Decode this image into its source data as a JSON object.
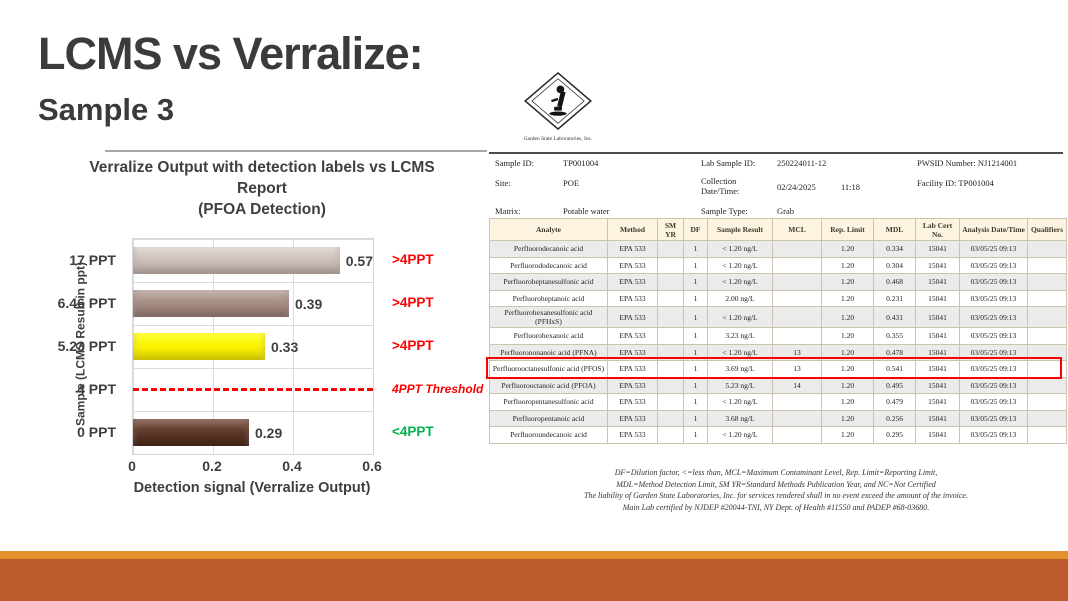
{
  "slide": {
    "title": "LCMS vs Verralize:",
    "subtitle": "Sample 3"
  },
  "chart": {
    "title_line1": "Verralize Output with detection labels vs LCMS",
    "title_line2": "Report",
    "title_line3": "(PFOA Detection)",
    "xlabel": "Detection signal (Verralize Output)",
    "ylabel": "Sample (LCMS Result in ppt)"
  },
  "chart_data": {
    "type": "bar",
    "orientation": "horizontal",
    "title": "Verralize Output with detection labels vs LCMS Report (PFOA Detection)",
    "xlabel": "Detection signal (Verralize Output)",
    "ylabel": "Sample (LCMS Result in ppt)",
    "categories": [
      "17 PPT",
      "6.46 PPT",
      "5.23 PPT",
      "4 PPT",
      "0 PPT"
    ],
    "values": [
      0.57,
      0.39,
      0.33,
      null,
      0.29
    ],
    "value_labels": [
      "0.57",
      "0.39",
      "0.33",
      "",
      "0.29"
    ],
    "annotations": [
      ">4PPT",
      ">4PPT",
      ">4PPT",
      "4PPT Threshold",
      "<4PPT"
    ],
    "annotation_styles": [
      "above",
      "above",
      "above",
      "threshold",
      "below"
    ],
    "bar_colors": [
      [
        "#dacec8",
        "#c1b0a9"
      ],
      [
        "#b39b92",
        "#997d74"
      ],
      [
        "#ffff00",
        "#f5e700"
      ],
      null,
      [
        "#6f4634",
        "#4a2a1a"
      ]
    ],
    "threshold_value_ppt": 4,
    "threshold_color": "#ff0000",
    "above_color": "#ff0000",
    "below_color": "#00b050",
    "xlim": [
      0,
      0.6
    ],
    "x_ticks": [
      "0",
      "0.2",
      "0.4",
      "0.6"
    ],
    "grid": true,
    "legend": false
  },
  "report": {
    "lab_name": "Garden State Laboratories, Inc.",
    "fields": {
      "sample_id_label": "Sample ID:",
      "sample_id": "TP001004",
      "site_label": "Site:",
      "site": "POE",
      "matrix_label": "Matrix:",
      "matrix": "Potable water",
      "lab_sample_id_label": "Lab Sample ID:",
      "lab_sample_id": "250224011-12",
      "collection_label": "Collection\nDate/Time:",
      "collection_date": "02/24/2025",
      "collection_time": "11:18",
      "sample_type_label": "Sample Type:",
      "sample_type": "Grab",
      "pwsid": "PWSID Number: NJ1214001",
      "facility_id": "Facility ID: TP001004"
    },
    "table": {
      "headers": [
        "Analyte",
        "Method",
        "SM\nYR",
        "DF",
        "Sample Result",
        "MCL",
        "Rep. Limit",
        "MDL",
        "Lab Cert\nNo.",
        "Analysis Date/Time",
        "Qualifiers"
      ],
      "rows": [
        [
          "Perfluorodecanoic acid",
          "EPA 533",
          "",
          "1",
          "< 1.20 ng/L",
          "",
          "1.20",
          "0.334",
          "15041",
          "03/05/25 09:13",
          ""
        ],
        [
          "Perfluorododecanoic acid",
          "EPA 533",
          "",
          "1",
          "< 1.20 ng/L",
          "",
          "1.20",
          "0.304",
          "15041",
          "03/05/25 09:13",
          ""
        ],
        [
          "Perfluoroheptanesulfonic acid",
          "EPA 533",
          "",
          "1",
          "< 1.20 ng/L",
          "",
          "1.20",
          "0.468",
          "15041",
          "03/05/25 09:13",
          ""
        ],
        [
          "Perfluoroheptanoic acid",
          "EPA 533",
          "",
          "1",
          "2.00 ng/L",
          "",
          "1.20",
          "0.231",
          "15041",
          "03/05/25 09:13",
          ""
        ],
        [
          "Perfluorohexanesulfonic acid (PFHxS)",
          "EPA 533",
          "",
          "1",
          "< 1.20 ng/L",
          "",
          "1.20",
          "0.431",
          "15041",
          "03/05/25 09:13",
          ""
        ],
        [
          "Perfluorohexanoic acid",
          "EPA 533",
          "",
          "1",
          "3.23 ng/L",
          "",
          "1.20",
          "0.355",
          "15041",
          "03/05/25 09:13",
          ""
        ],
        [
          "Perfluorononanoic acid (PFNA)",
          "EPA 533",
          "",
          "1",
          "< 1.20 ng/L",
          "13",
          "1.20",
          "0.478",
          "15041",
          "03/05/25 09:13",
          ""
        ],
        [
          "Perfluorooctanesulfonic acid (PFOS)",
          "EPA 533",
          "",
          "1",
          "3.69 ng/L",
          "13",
          "1.20",
          "0.541",
          "15041",
          "03/05/25 09:13",
          ""
        ],
        [
          "Perfluorooctanoic acid (PFOA)",
          "EPA 533",
          "",
          "1",
          "5.23 ng/L",
          "14",
          "1.20",
          "0.495",
          "15041",
          "03/05/25 09:13",
          ""
        ],
        [
          "Perfluoropentanesulfonic acid",
          "EPA 533",
          "",
          "1",
          "< 1.20 ng/L",
          "",
          "1.20",
          "0.479",
          "15041",
          "03/05/25 09:13",
          ""
        ],
        [
          "Perfluoropentanoic acid",
          "EPA 533",
          "",
          "1",
          "3.68 ng/L",
          "",
          "1.20",
          "0.256",
          "15041",
          "03/05/25 09:13",
          ""
        ],
        [
          "Perfluoroundecanoic acid",
          "EPA 533",
          "",
          "1",
          "< 1.20 ng/L",
          "",
          "1.20",
          "0.295",
          "15041",
          "03/05/25 09:13",
          ""
        ]
      ],
      "highlight_row_index": 7,
      "highlight_color": "#ff0000"
    },
    "footnotes": [
      "DF=Dilution factor, <=less than, MCL=Maximum Contaminant Level, Rep. Limit=Reporting Limit,",
      "MDL=Method Detection Limit, SM YR=Standard Methods Publication Year, and NC=Not Certified",
      "The liability of Garden State Laboratories, Inc. for services rendered shall in no event exceed the amount of the invoice.",
      "Main Lab certified by NJDEP #20044-TNI, NY Dept. of Health #11550 and PADEP #68-03680."
    ]
  },
  "footer_bands": {
    "thin_color": "#e2912c",
    "main_color": "#bc5a2b"
  }
}
